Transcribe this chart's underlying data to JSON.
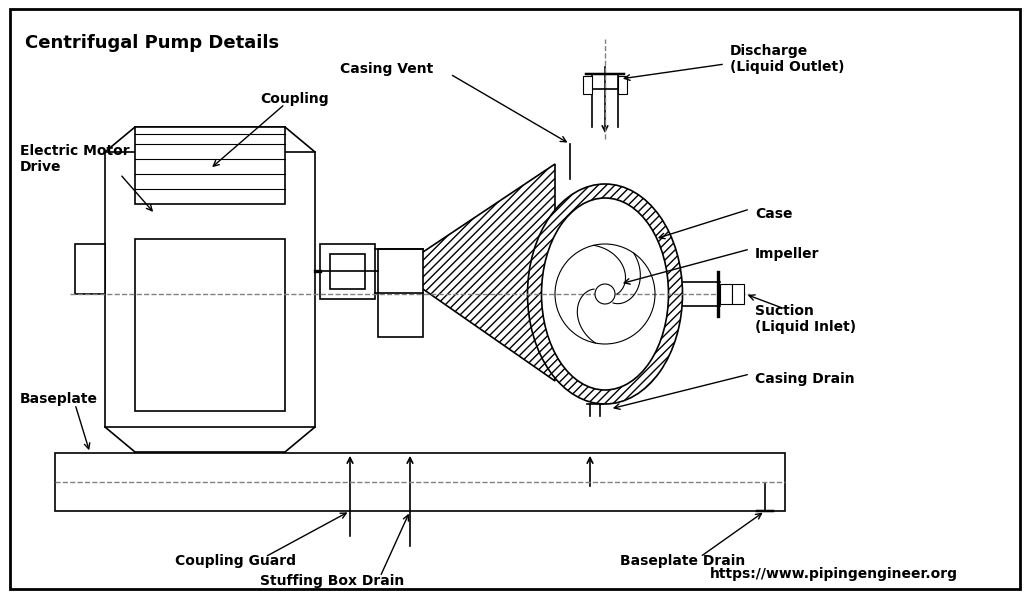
{
  "title": "Centrifugal Pump Details",
  "background_color": "#ffffff",
  "border_color": "#000000",
  "line_color": "#000000",
  "hatch_color": "#000000",
  "text_color": "#000000",
  "url_text": "https://www.pipingengineer.org",
  "labels": {
    "discharge": "Discharge\n(Liquid Outlet)",
    "casing_vent": "Casing Vent",
    "coupling": "Coupling",
    "electric_motor": "Electric Motor\nDrive",
    "case": "Case",
    "impeller": "Impeller",
    "suction": "Suction\n(Liquid Inlet)",
    "casing_drain": "Casing Drain",
    "baseplate": "Baseplate",
    "coupling_guard": "Coupling Guard",
    "stuffing_box_drain": "Stuffing Box Drain",
    "baseplate_drain": "Baseplate Drain"
  },
  "figsize": [
    10.3,
    5.99
  ],
  "dpi": 100
}
